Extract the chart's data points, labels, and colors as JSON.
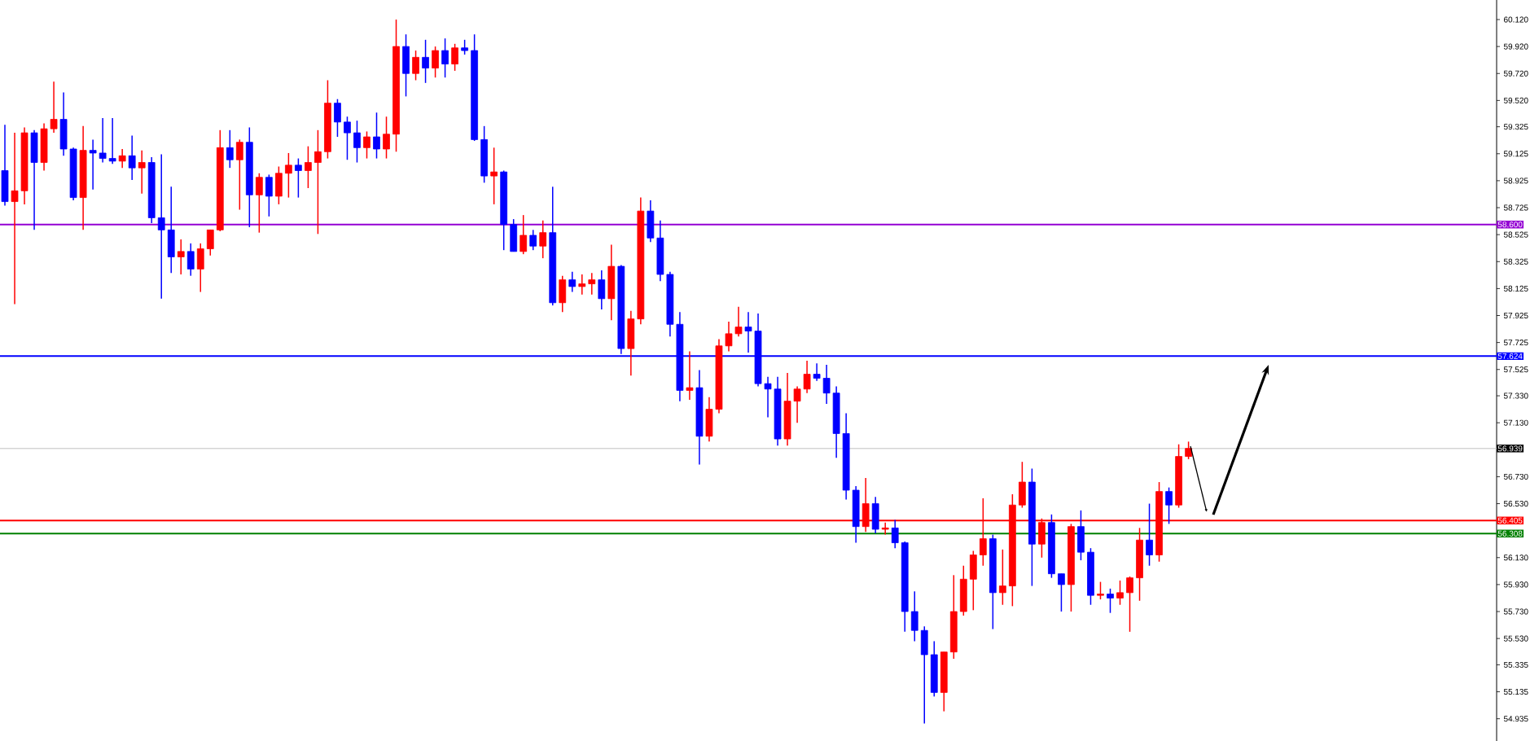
{
  "chart_data": {
    "type": "candlestick",
    "categories": [
      null,
      null,
      null,
      null,
      null,
      null,
      null,
      null,
      null,
      null,
      null,
      null,
      null,
      null,
      null,
      null,
      null,
      null,
      null,
      null,
      null,
      null,
      null,
      null,
      null,
      null,
      null,
      null,
      null,
      null,
      null,
      null,
      null,
      null,
      null,
      null,
      null,
      null,
      null,
      null,
      null,
      null,
      null,
      null,
      null,
      null,
      null,
      null,
      null,
      null,
      null,
      null,
      null,
      null,
      null,
      null,
      null,
      null,
      null,
      null,
      null,
      null,
      null,
      null,
      null,
      null,
      null,
      null,
      null,
      null,
      null,
      null,
      null,
      null,
      null,
      null,
      null,
      null,
      null,
      null,
      null,
      null,
      null,
      null,
      null,
      null,
      null,
      null,
      null,
      null,
      null,
      null,
      null,
      null,
      null,
      null,
      null,
      null,
      null,
      null,
      null,
      null,
      null,
      null,
      null,
      null,
      null,
      null,
      null,
      null,
      null,
      null,
      null,
      null,
      null,
      null,
      null,
      null,
      null,
      null,
      null,
      null,
      null,
      null,
      null,
      null,
      null,
      null,
      null,
      null,
      null,
      null,
      null,
      null,
      null,
      null,
      null,
      null,
      null,
      null,
      null,
      null,
      null,
      null,
      null,
      null,
      null,
      null,
      null,
      null,
      null,
      null,
      null
    ],
    "ohlc": [
      [
        59.0,
        59.34,
        58.74,
        58.77
      ],
      [
        58.77,
        59.28,
        58.01,
        58.85
      ],
      [
        58.85,
        59.32,
        58.75,
        59.28
      ],
      [
        59.28,
        59.3,
        58.56,
        59.06
      ],
      [
        59.06,
        59.35,
        59.0,
        59.31
      ],
      [
        59.31,
        59.66,
        59.28,
        59.38
      ],
      [
        59.38,
        59.58,
        59.11,
        59.16
      ],
      [
        59.16,
        59.17,
        58.78,
        58.8
      ],
      [
        58.8,
        59.33,
        58.56,
        59.15
      ],
      [
        59.15,
        59.23,
        58.86,
        59.13
      ],
      [
        59.13,
        59.39,
        59.06,
        59.09
      ],
      [
        59.09,
        59.39,
        59.05,
        59.07
      ],
      [
        59.07,
        59.16,
        59.02,
        59.11
      ],
      [
        59.11,
        59.26,
        58.93,
        59.02
      ],
      [
        59.02,
        59.15,
        58.83,
        59.06
      ],
      [
        59.06,
        59.1,
        58.61,
        58.65
      ],
      [
        58.65,
        59.12,
        58.05,
        58.56
      ],
      [
        58.56,
        58.88,
        58.24,
        58.36
      ],
      [
        58.36,
        58.49,
        58.23,
        58.4
      ],
      [
        58.4,
        58.46,
        58.22,
        58.27
      ],
      [
        58.27,
        58.46,
        58.1,
        58.42
      ],
      [
        58.42,
        58.56,
        58.37,
        58.56
      ],
      [
        58.56,
        59.3,
        58.55,
        59.17
      ],
      [
        59.17,
        59.3,
        59.02,
        59.08
      ],
      [
        59.08,
        59.23,
        58.71,
        59.21
      ],
      [
        59.21,
        59.32,
        58.58,
        58.82
      ],
      [
        58.82,
        58.98,
        58.54,
        58.95
      ],
      [
        58.95,
        58.97,
        58.66,
        58.81
      ],
      [
        58.81,
        59.03,
        58.75,
        58.98
      ],
      [
        58.98,
        59.13,
        58.8,
        59.04
      ],
      [
        59.04,
        59.09,
        58.8,
        59.0
      ],
      [
        59.0,
        59.18,
        58.87,
        59.06
      ],
      [
        59.06,
        59.3,
        58.53,
        59.14
      ],
      [
        59.14,
        59.67,
        59.09,
        59.5
      ],
      [
        59.5,
        59.53,
        59.25,
        59.36
      ],
      [
        59.36,
        59.4,
        59.08,
        59.28
      ],
      [
        59.28,
        59.37,
        59.06,
        59.17
      ],
      [
        59.17,
        59.29,
        59.09,
        59.25
      ],
      [
        59.25,
        59.43,
        59.09,
        59.16
      ],
      [
        59.16,
        59.4,
        59.09,
        59.27
      ],
      [
        59.27,
        60.12,
        59.14,
        59.92
      ],
      [
        59.92,
        60.01,
        59.55,
        59.72
      ],
      [
        59.72,
        59.89,
        59.67,
        59.84
      ],
      [
        59.84,
        59.97,
        59.65,
        59.76
      ],
      [
        59.76,
        59.92,
        59.69,
        59.89
      ],
      [
        59.89,
        59.98,
        59.69,
        59.79
      ],
      [
        59.79,
        59.94,
        59.74,
        59.91
      ],
      [
        59.91,
        59.97,
        59.86,
        59.89
      ],
      [
        59.89,
        60.01,
        59.22,
        59.23
      ],
      [
        59.23,
        59.33,
        58.91,
        58.96
      ],
      [
        58.96,
        59.17,
        58.75,
        58.99
      ],
      [
        58.99,
        59.0,
        58.41,
        58.6
      ],
      [
        58.6,
        58.64,
        58.4,
        58.4
      ],
      [
        58.4,
        58.67,
        58.38,
        58.52
      ],
      [
        58.52,
        58.56,
        58.41,
        58.44
      ],
      [
        58.44,
        58.63,
        58.35,
        58.54
      ],
      [
        58.54,
        58.88,
        58.0,
        58.02
      ],
      [
        58.02,
        58.22,
        57.95,
        58.19
      ],
      [
        58.19,
        58.25,
        58.1,
        58.14
      ],
      [
        58.14,
        58.23,
        58.08,
        58.16
      ],
      [
        58.16,
        58.24,
        58.08,
        58.19
      ],
      [
        58.19,
        58.26,
        57.97,
        58.05
      ],
      [
        58.05,
        58.45,
        57.89,
        58.29
      ],
      [
        58.29,
        58.3,
        57.64,
        57.68
      ],
      [
        57.68,
        57.96,
        57.48,
        57.9
      ],
      [
        57.9,
        58.8,
        57.86,
        58.7
      ],
      [
        58.7,
        58.78,
        58.47,
        58.5
      ],
      [
        58.5,
        58.63,
        58.18,
        58.23
      ],
      [
        58.23,
        58.25,
        57.77,
        57.86
      ],
      [
        57.86,
        57.95,
        57.29,
        57.37
      ],
      [
        57.37,
        57.66,
        57.3,
        57.39
      ],
      [
        57.39,
        57.52,
        56.82,
        57.03
      ],
      [
        57.03,
        57.32,
        56.99,
        57.23
      ],
      [
        57.23,
        57.75,
        57.2,
        57.7
      ],
      [
        57.7,
        57.88,
        57.66,
        57.79
      ],
      [
        57.79,
        57.99,
        57.77,
        57.84
      ],
      [
        57.84,
        57.95,
        57.65,
        57.81
      ],
      [
        57.81,
        57.94,
        57.4,
        57.42
      ],
      [
        57.42,
        57.47,
        57.17,
        57.38
      ],
      [
        57.38,
        57.47,
        56.96,
        57.01
      ],
      [
        57.01,
        57.5,
        56.96,
        57.29
      ],
      [
        57.29,
        57.4,
        57.13,
        57.38
      ],
      [
        57.38,
        57.59,
        57.35,
        57.49
      ],
      [
        57.49,
        57.57,
        57.44,
        57.46
      ],
      [
        57.46,
        57.56,
        57.27,
        57.35
      ],
      [
        57.35,
        57.4,
        56.87,
        57.05
      ],
      [
        57.05,
        57.2,
        56.56,
        56.63
      ],
      [
        56.63,
        56.66,
        56.24,
        56.36
      ],
      [
        56.36,
        56.72,
        56.32,
        56.53
      ],
      [
        56.53,
        56.58,
        56.31,
        56.34
      ],
      [
        56.34,
        56.39,
        56.3,
        56.35
      ],
      [
        56.35,
        56.41,
        56.2,
        56.24
      ],
      [
        56.24,
        56.25,
        55.58,
        55.73
      ],
      [
        55.73,
        55.88,
        55.51,
        55.59
      ],
      [
        55.59,
        55.62,
        54.9,
        55.41
      ],
      [
        55.41,
        55.51,
        55.1,
        55.13
      ],
      [
        55.13,
        55.43,
        54.99,
        55.43
      ],
      [
        55.43,
        56.0,
        55.38,
        55.73
      ],
      [
        55.73,
        56.07,
        55.7,
        55.97
      ],
      [
        55.97,
        56.18,
        55.74,
        56.15
      ],
      [
        56.15,
        56.57,
        56.07,
        56.27
      ],
      [
        56.27,
        56.3,
        55.6,
        55.87
      ],
      [
        55.87,
        56.19,
        55.78,
        55.92
      ],
      [
        55.92,
        56.6,
        55.77,
        56.52
      ],
      [
        56.52,
        56.84,
        56.5,
        56.69
      ],
      [
        56.69,
        56.79,
        55.92,
        56.23
      ],
      [
        56.23,
        56.42,
        56.13,
        56.39
      ],
      [
        56.39,
        56.45,
        55.98,
        56.01
      ],
      [
        56.01,
        56.01,
        55.73,
        55.93
      ],
      [
        55.93,
        56.38,
        55.73,
        56.36
      ],
      [
        56.36,
        56.48,
        56.11,
        56.17
      ],
      [
        56.17,
        56.2,
        55.78,
        55.85
      ],
      [
        55.85,
        55.95,
        55.82,
        55.86
      ],
      [
        55.86,
        55.9,
        55.72,
        55.83
      ],
      [
        55.83,
        55.96,
        55.78,
        55.87
      ],
      [
        55.87,
        55.99,
        55.58,
        55.98
      ],
      [
        55.98,
        56.35,
        55.81,
        56.26
      ],
      [
        56.26,
        56.53,
        56.07,
        56.15
      ],
      [
        56.15,
        56.69,
        56.1,
        56.62
      ],
      [
        56.62,
        56.65,
        56.38,
        56.52
      ],
      [
        56.52,
        56.97,
        56.5,
        56.88
      ],
      [
        56.88,
        56.99,
        56.86,
        56.94
      ],
      null,
      null,
      null,
      null,
      null,
      null,
      null,
      null,
      null,
      null,
      null,
      null,
      null,
      null,
      null,
      null,
      null,
      null,
      null,
      null,
      null,
      null,
      null,
      null,
      null,
      null,
      null,
      null,
      null,
      null,
      null
    ],
    "colors": [
      "#0000ff",
      "#ff0000",
      "#ff0000",
      "#0000ff",
      "#ff0000",
      "#ff0000",
      "#0000ff",
      "#0000ff",
      "#ff0000",
      "#0000ff",
      "#0000ff",
      "#0000ff",
      "#ff0000",
      "#0000ff",
      "#ff0000",
      "#0000ff",
      "#0000ff",
      "#0000ff",
      "#ff0000",
      "#0000ff",
      "#ff0000",
      "#ff0000",
      "#ff0000",
      "#0000ff",
      "#ff0000",
      "#0000ff",
      "#ff0000",
      "#0000ff",
      "#ff0000",
      "#ff0000",
      "#0000ff",
      "#ff0000",
      "#ff0000",
      "#ff0000",
      "#0000ff",
      "#0000ff",
      "#0000ff",
      "#ff0000",
      "#0000ff",
      "#ff0000",
      "#ff0000",
      "#0000ff",
      "#ff0000",
      "#0000ff",
      "#ff0000",
      "#0000ff",
      "#ff0000",
      "#0000ff",
      "#0000ff",
      "#0000ff",
      "#ff0000",
      "#0000ff",
      "#0000ff",
      "#ff0000",
      "#0000ff",
      "#ff0000",
      "#0000ff",
      "#ff0000",
      "#0000ff",
      "#ff0000",
      "#ff0000",
      "#0000ff",
      "#ff0000",
      "#0000ff",
      "#ff0000",
      "#ff0000",
      "#0000ff",
      "#0000ff",
      "#0000ff",
      "#0000ff",
      "#ff0000",
      "#0000ff",
      "#ff0000",
      "#ff0000",
      "#ff0000",
      "#ff0000",
      "#0000ff",
      "#0000ff",
      "#0000ff",
      "#0000ff",
      "#ff0000",
      "#ff0000",
      "#ff0000",
      "#0000ff",
      "#0000ff",
      "#0000ff",
      "#0000ff",
      "#0000ff",
      "#ff0000",
      "#0000ff",
      "#ff0000",
      "#0000ff",
      "#0000ff",
      "#0000ff",
      "#0000ff",
      "#0000ff",
      "#ff0000",
      "#ff0000",
      "#ff0000",
      "#ff0000",
      "#ff0000",
      "#0000ff",
      "#ff0000",
      "#ff0000",
      "#ff0000",
      "#0000ff",
      "#ff0000",
      "#0000ff",
      "#0000ff",
      "#ff0000",
      "#0000ff",
      "#0000ff",
      "#ff0000",
      "#0000ff",
      "#ff0000",
      "#ff0000",
      "#ff0000",
      "#0000ff",
      "#ff0000",
      "#0000ff",
      "#ff0000",
      "#ff0000",
      null,
      null,
      null,
      null,
      null,
      null,
      null,
      null,
      null,
      null,
      null,
      null,
      null,
      null,
      null,
      null,
      null,
      null,
      null,
      null,
      null,
      null,
      null,
      null,
      null,
      null,
      null,
      null,
      null,
      null,
      null
    ],
    "ylim": [
      54.77,
      60.265
    ],
    "yticks": [
      {
        "value": 60.12,
        "label": "60.120"
      },
      {
        "value": 59.92,
        "label": "59.920"
      },
      {
        "value": 59.72,
        "label": "59.720"
      },
      {
        "value": 59.52,
        "label": "59.520"
      },
      {
        "value": 59.325,
        "label": "59.325"
      },
      {
        "value": 59.125,
        "label": "59.125"
      },
      {
        "value": 58.925,
        "label": "58.925"
      },
      {
        "value": 58.725,
        "label": "58.725"
      },
      {
        "value": 58.525,
        "label": "58.525"
      },
      {
        "value": 58.325,
        "label": "58.325"
      },
      {
        "value": 58.125,
        "label": "58.125"
      },
      {
        "value": 57.925,
        "label": "57.925"
      },
      {
        "value": 57.725,
        "label": "57.725"
      },
      {
        "value": 57.525,
        "label": "57.525"
      },
      {
        "value": 57.33,
        "label": "57.330"
      },
      {
        "value": 57.13,
        "label": "57.130"
      },
      {
        "value": 56.73,
        "label": "56.730"
      },
      {
        "value": 56.53,
        "label": "56.530"
      },
      {
        "value": 56.13,
        "label": "56.130"
      },
      {
        "value": 55.93,
        "label": "55.930"
      },
      {
        "value": 55.73,
        "label": "55.730"
      },
      {
        "value": 55.53,
        "label": "55.530"
      },
      {
        "value": 55.335,
        "label": "55.335"
      },
      {
        "value": 55.135,
        "label": "55.135"
      },
      {
        "value": 54.935,
        "label": "54.935"
      }
    ],
    "ref_lines": [
      {
        "axis": "y",
        "value": 58.6,
        "label": "58.600",
        "color": "#9400d3"
      },
      {
        "axis": "y",
        "value": 57.624,
        "label": "57.624",
        "color": "#0000ff"
      },
      {
        "axis": "y",
        "value": 56.939,
        "label": "56.939",
        "color": "#c0c0c0"
      },
      {
        "axis": "y",
        "value": 56.405,
        "label": "56.405",
        "color": "#ff0000"
      },
      {
        "axis": "y",
        "value": 56.308,
        "label": "56.308",
        "color": "#008000"
      }
    ],
    "tick_labels": "y"
  }
}
